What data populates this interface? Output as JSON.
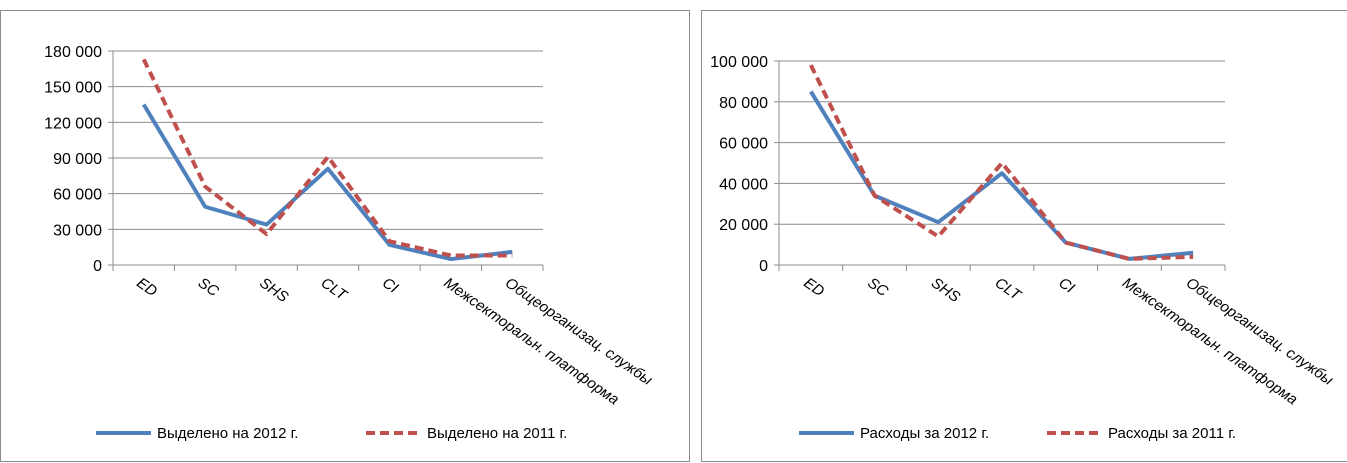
{
  "colors": {
    "series2012": "#4f81bd",
    "series2011": "#c0504d",
    "grid": "#8c8c8c",
    "axis": "#8c8c8c"
  },
  "chart_data": [
    {
      "type": "line",
      "categories": [
        "ED",
        "SC",
        "SHS",
        "CLT",
        "CI",
        "Межсекторальн. платформа",
        "Общеорганизац. службы"
      ],
      "ylim": [
        0,
        180000
      ],
      "yticks": [
        0,
        30000,
        60000,
        90000,
        120000,
        150000,
        180000
      ],
      "ytick_labels": [
        "0",
        "30 000",
        "60 000",
        "90 000",
        "120 000",
        "150 000",
        "180 000"
      ],
      "grid": true,
      "legend": "bottom",
      "series": [
        {
          "name": "Выделено на 2012 г.",
          "style": "solid",
          "color": "#4f81bd",
          "values": [
            135000,
            49000,
            34000,
            81000,
            17000,
            5000,
            11000
          ]
        },
        {
          "name": "Выделено на 2011 г.",
          "style": "dashed",
          "color": "#c0504d",
          "values": [
            173000,
            66000,
            26000,
            91000,
            20000,
            8000,
            8000
          ]
        }
      ]
    },
    {
      "type": "line",
      "categories": [
        "ED",
        "SC",
        "SHS",
        "CLT",
        "CI",
        "Межсекторальн. платформа",
        "Общеорганизац. службы"
      ],
      "ylim": [
        0,
        100000
      ],
      "yticks": [
        0,
        20000,
        40000,
        60000,
        80000,
        100000
      ],
      "ytick_labels": [
        "0",
        "20 000",
        "40 000",
        "60 000",
        "80 000",
        "100 000"
      ],
      "grid": true,
      "legend": "bottom",
      "series": [
        {
          "name": "Расходы за 2012 г.",
          "style": "solid",
          "color": "#4f81bd",
          "values": [
            85000,
            34000,
            21000,
            45000,
            11000,
            3000,
            6000
          ]
        },
        {
          "name": "Расходы за 2011 г.",
          "style": "dashed",
          "color": "#c0504d",
          "values": [
            98000,
            34000,
            14000,
            50000,
            11000,
            3000,
            4000
          ]
        }
      ]
    }
  ]
}
